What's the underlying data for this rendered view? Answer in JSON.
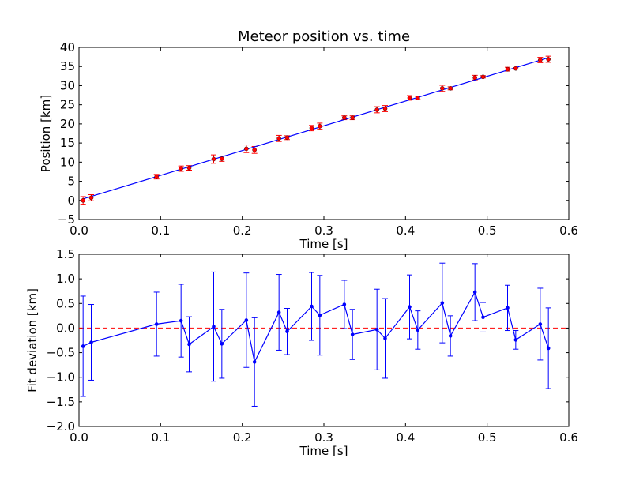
{
  "chart_data": [
    {
      "type": "scatter",
      "title": "Meteor position vs. time",
      "xlabel": "Time [s]",
      "ylabel": "Position [km]",
      "xlim": [
        0.0,
        0.6
      ],
      "ylim": [
        -5,
        40
      ],
      "xticks": [
        "0.0",
        "0.1",
        "0.2",
        "0.3",
        "0.4",
        "0.5",
        "0.6"
      ],
      "yticks": [
        "−5",
        "0",
        "5",
        "10",
        "15",
        "20",
        "25",
        "30",
        "35",
        "40"
      ],
      "grid": false,
      "colors": {
        "points": "#ff0000",
        "fit": "#0000ff"
      },
      "series": [
        {
          "role": "data points with error bars",
          "x": [
            0.005,
            0.015,
            0.095,
            0.125,
            0.135,
            0.165,
            0.175,
            0.205,
            0.215,
            0.245,
            0.255,
            0.285,
            0.295,
            0.325,
            0.335,
            0.365,
            0.375,
            0.405,
            0.415,
            0.445,
            0.455,
            0.485,
            0.495,
            0.525,
            0.535,
            0.565,
            0.575
          ],
          "y": [
            0.0,
            0.7,
            6.2,
            8.3,
            8.5,
            10.8,
            10.9,
            13.5,
            13.2,
            16.2,
            16.4,
            18.9,
            19.4,
            21.6,
            21.6,
            23.7,
            24.0,
            26.8,
            26.8,
            29.3,
            29.3,
            32.1,
            32.3,
            34.3,
            34.5,
            36.7,
            36.9
          ],
          "yerr": [
            1.0,
            0.8,
            0.6,
            0.7,
            0.6,
            1.1,
            0.7,
            1.0,
            0.9,
            0.8,
            0.5,
            0.7,
            0.8,
            0.5,
            0.5,
            0.8,
            0.8,
            0.6,
            0.4,
            0.8,
            0.4,
            0.6,
            0.3,
            0.5,
            0.2,
            0.7,
            0.8
          ]
        },
        {
          "role": "linear fit",
          "x": [
            0.005,
            0.575
          ],
          "y": [
            0.4,
            37.3
          ]
        }
      ]
    },
    {
      "type": "line",
      "title": "",
      "xlabel": "Time [s]",
      "ylabel": "Fit deviation [km]",
      "xlim": [
        0.0,
        0.6
      ],
      "ylim": [
        -2.0,
        1.5
      ],
      "xticks": [
        "0.0",
        "0.1",
        "0.2",
        "0.3",
        "0.4",
        "0.5",
        "0.6"
      ],
      "yticks": [
        "−2.0",
        "−1.5",
        "−1.0",
        "−0.5",
        "0.0",
        "0.5",
        "1.0",
        "1.5"
      ],
      "grid": false,
      "reference_line": {
        "y": 0.0,
        "style": "dashed",
        "color": "#ff0000"
      },
      "colors": {
        "series": "#0000ff"
      },
      "series": [
        {
          "role": "residuals with error bars",
          "x": [
            0.005,
            0.015,
            0.095,
            0.125,
            0.135,
            0.165,
            0.175,
            0.205,
            0.215,
            0.245,
            0.255,
            0.285,
            0.295,
            0.325,
            0.335,
            0.365,
            0.375,
            0.405,
            0.415,
            0.445,
            0.455,
            0.485,
            0.495,
            0.525,
            0.535,
            0.565,
            0.575
          ],
          "y": [
            -0.37,
            -0.29,
            0.08,
            0.15,
            -0.33,
            0.03,
            -0.32,
            0.16,
            -0.69,
            0.32,
            -0.07,
            0.44,
            0.26,
            0.48,
            -0.13,
            -0.03,
            -0.21,
            0.43,
            -0.04,
            0.51,
            -0.16,
            0.73,
            0.22,
            0.41,
            -0.24,
            0.08,
            -0.41
          ],
          "yerr": [
            1.02,
            0.77,
            0.65,
            0.74,
            0.56,
            1.11,
            0.7,
            0.96,
            0.9,
            0.77,
            0.47,
            0.69,
            0.81,
            0.49,
            0.51,
            0.82,
            0.81,
            0.65,
            0.39,
            0.81,
            0.41,
            0.58,
            0.3,
            0.46,
            0.19,
            0.73,
            0.82
          ]
        }
      ]
    }
  ]
}
